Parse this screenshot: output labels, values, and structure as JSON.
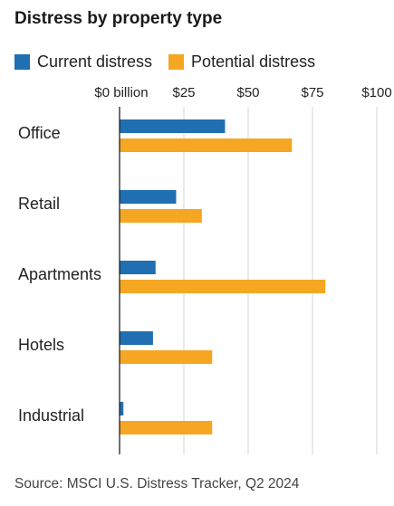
{
  "chart_data": {
    "type": "bar",
    "orientation": "horizontal",
    "title": "Distress by property type",
    "categories": [
      "Office",
      "Retail",
      "Apartments",
      "Hotels",
      "Industrial"
    ],
    "series": [
      {
        "name": "Current distress",
        "color": "#1f6fb2",
        "values": [
          41,
          22,
          14,
          13,
          1.5
        ]
      },
      {
        "name": "Potential distress",
        "color": "#f5a623",
        "values": [
          67,
          32,
          80,
          36,
          36
        ]
      }
    ],
    "x_ticks": [
      {
        "value": 0,
        "label": "$0 billion"
      },
      {
        "value": 25,
        "label": "$25"
      },
      {
        "value": 50,
        "label": "$50"
      },
      {
        "value": 75,
        "label": "$75"
      },
      {
        "value": 100,
        "label": "$100"
      }
    ],
    "xlim": [
      0,
      100
    ],
    "grid": true,
    "legend_position": "top-left",
    "source": "Source: MSCI U.S. Distress Tracker, Q2 2024"
  }
}
